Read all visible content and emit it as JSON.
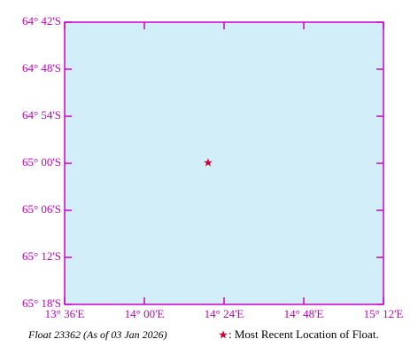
{
  "chart_data": {
    "type": "scatter",
    "caption": "Float 23362 (As of 03 Jan 2026)",
    "xlim": [
      13.6,
      15.2
    ],
    "xticks": [
      {
        "value": 13.6,
        "label": "13° 36'E"
      },
      {
        "value": 14.0,
        "label": "14° 00'E"
      },
      {
        "value": 14.4,
        "label": "14° 24'E"
      },
      {
        "value": 14.8,
        "label": "14° 48'E"
      },
      {
        "value": 15.2,
        "label": "15° 12'E"
      }
    ],
    "ylim": [
      -65.3,
      -64.7
    ],
    "yticks": [
      {
        "value": -64.7,
        "label": "64° 42'S"
      },
      {
        "value": -64.8,
        "label": "64° 48'S"
      },
      {
        "value": -64.9,
        "label": "64° 54'S"
      },
      {
        "value": -65.0,
        "label": "65° 00'S"
      },
      {
        "value": -65.1,
        "label": "65° 06'S"
      },
      {
        "value": -65.2,
        "label": "65° 12'S"
      },
      {
        "value": -65.3,
        "label": "65° 18'S"
      }
    ],
    "background": "#d2eef8",
    "frame_color": "#cc00cc",
    "series": [
      {
        "name": ": Most Recent Location of Float.",
        "color": "#cc0033",
        "x": [
          14.32
        ],
        "values": [
          -65.0
        ]
      }
    ]
  }
}
